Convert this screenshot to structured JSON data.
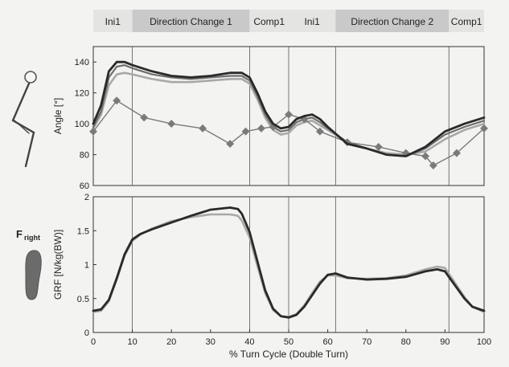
{
  "header": {
    "phases": [
      {
        "label": "Ini1",
        "from": 0,
        "to": 10,
        "shaded": false
      },
      {
        "label": "Direction Change 1",
        "from": 10,
        "to": 40,
        "shaded": true
      },
      {
        "label": "Comp1",
        "from": 40,
        "to": 50,
        "shaded": false
      },
      {
        "label": "Ini1",
        "from": 50,
        "to": 62,
        "shaded": false
      },
      {
        "label": "Direction Change 2",
        "from": 62,
        "to": 91,
        "shaded": true
      },
      {
        "label": "Comp1",
        "from": 91,
        "to": 100,
        "shaded": false
      }
    ]
  },
  "side_labels": {
    "force_main": "F",
    "force_sub": "right"
  },
  "colors": {
    "background": "#f3f3f1",
    "phase_shade": "#c8c9c8",
    "phase_plain": "#e4e4e2",
    "dark_series": "#2a2a2a",
    "light_series": "#a8a8a8",
    "marker_series": "#7a7a7a",
    "phase_lines": "#555555"
  },
  "chart_data": [
    {
      "type": "line",
      "name": "angle-chart",
      "xlabel": "",
      "ylabel": "Angle [°]",
      "xlim": [
        0,
        100
      ],
      "ylim": [
        60,
        150
      ],
      "yticks": [
        60,
        80,
        100,
        120,
        140
      ],
      "phase_boundaries": [
        10,
        40,
        50,
        62,
        91
      ],
      "grid": false,
      "series": [
        {
          "style": "dark",
          "x": [
            0,
            2,
            4,
            6,
            8,
            10,
            15,
            20,
            25,
            30,
            35,
            38,
            40,
            42,
            44,
            46,
            48,
            50,
            52,
            54,
            56,
            58,
            60,
            65,
            70,
            75,
            80,
            85,
            90,
            95,
            100
          ],
          "y": [
            100,
            112,
            134,
            140,
            140,
            138,
            134,
            131,
            130,
            131,
            133,
            133,
            130,
            120,
            108,
            100,
            97,
            98,
            103,
            105,
            106,
            103,
            98,
            87,
            84,
            80,
            79,
            85,
            95,
            100,
            104
          ]
        },
        {
          "style": "mid",
          "x": [
            0,
            2,
            4,
            6,
            8,
            10,
            15,
            20,
            25,
            30,
            35,
            38,
            40,
            42,
            44,
            46,
            48,
            50,
            52,
            54,
            56,
            58,
            60,
            65,
            70,
            75,
            80,
            85,
            90,
            95,
            100
          ],
          "y": [
            98,
            108,
            130,
            137,
            138,
            136,
            132,
            130,
            129,
            130,
            131,
            131,
            128,
            118,
            106,
            98,
            95,
            96,
            101,
            103,
            104,
            101,
            97,
            88,
            84,
            80,
            79,
            84,
            93,
            98,
            102
          ]
        },
        {
          "style": "light",
          "x": [
            0,
            2,
            4,
            6,
            8,
            10,
            15,
            20,
            25,
            30,
            35,
            38,
            40,
            42,
            44,
            46,
            48,
            50,
            52,
            54,
            56,
            58,
            60,
            65,
            70,
            75,
            80,
            85,
            90,
            95,
            100
          ],
          "y": [
            97,
            106,
            125,
            132,
            133,
            132,
            129,
            127,
            127,
            128,
            129,
            129,
            126,
            116,
            104,
            96,
            93,
            94,
            99,
            101,
            102,
            99,
            96,
            88,
            84,
            81,
            80,
            82,
            90,
            96,
            100
          ]
        },
        {
          "style": "marker",
          "x": [
            0,
            6,
            13,
            20,
            28,
            35,
            39,
            43,
            46,
            50,
            54,
            58,
            65,
            73,
            80,
            85,
            87,
            93,
            100
          ],
          "y": [
            95,
            115,
            104,
            100,
            97,
            87,
            95,
            97,
            98,
            106,
            103,
            95,
            88,
            85,
            81,
            79,
            73,
            81,
            97
          ]
        }
      ]
    },
    {
      "type": "line",
      "name": "grf-chart",
      "xlabel": "% Turn Cycle (Double Turn)",
      "ylabel": "GRF [N/kg(BW)]",
      "xlim": [
        0,
        100
      ],
      "ylim": [
        0,
        2
      ],
      "xticks": [
        0,
        10,
        20,
        30,
        40,
        50,
        60,
        70,
        80,
        90,
        100
      ],
      "yticks": [
        0,
        0.5,
        1,
        1.5,
        2
      ],
      "phase_boundaries": [
        10,
        40,
        50,
        62,
        91
      ],
      "grid": false,
      "series": [
        {
          "style": "dark",
          "x": [
            0,
            2,
            4,
            6,
            8,
            10,
            12,
            15,
            20,
            25,
            30,
            35,
            37,
            38,
            40,
            42,
            44,
            46,
            48,
            50,
            52,
            54,
            56,
            58,
            60,
            62,
            65,
            70,
            75,
            80,
            85,
            88,
            90,
            92,
            95,
            97,
            100
          ],
          "y": [
            0.32,
            0.34,
            0.48,
            0.8,
            1.15,
            1.37,
            1.45,
            1.52,
            1.62,
            1.72,
            1.81,
            1.84,
            1.82,
            1.75,
            1.48,
            1.05,
            0.62,
            0.35,
            0.24,
            0.22,
            0.26,
            0.38,
            0.55,
            0.72,
            0.85,
            0.87,
            0.81,
            0.78,
            0.79,
            0.82,
            0.9,
            0.93,
            0.9,
            0.74,
            0.5,
            0.38,
            0.32
          ]
        },
        {
          "style": "light",
          "x": [
            0,
            2,
            4,
            6,
            8,
            10,
            12,
            15,
            20,
            25,
            30,
            35,
            37,
            38,
            40,
            42,
            44,
            46,
            48,
            50,
            52,
            54,
            56,
            58,
            60,
            62,
            65,
            70,
            75,
            80,
            85,
            88,
            90,
            92,
            95,
            97,
            100
          ],
          "y": [
            0.3,
            0.32,
            0.46,
            0.78,
            1.13,
            1.35,
            1.44,
            1.53,
            1.64,
            1.7,
            1.74,
            1.74,
            1.72,
            1.65,
            1.4,
            0.98,
            0.58,
            0.33,
            0.24,
            0.23,
            0.27,
            0.4,
            0.58,
            0.75,
            0.84,
            0.84,
            0.8,
            0.79,
            0.8,
            0.84,
            0.93,
            0.97,
            0.95,
            0.78,
            0.52,
            0.38,
            0.3
          ]
        }
      ]
    }
  ]
}
